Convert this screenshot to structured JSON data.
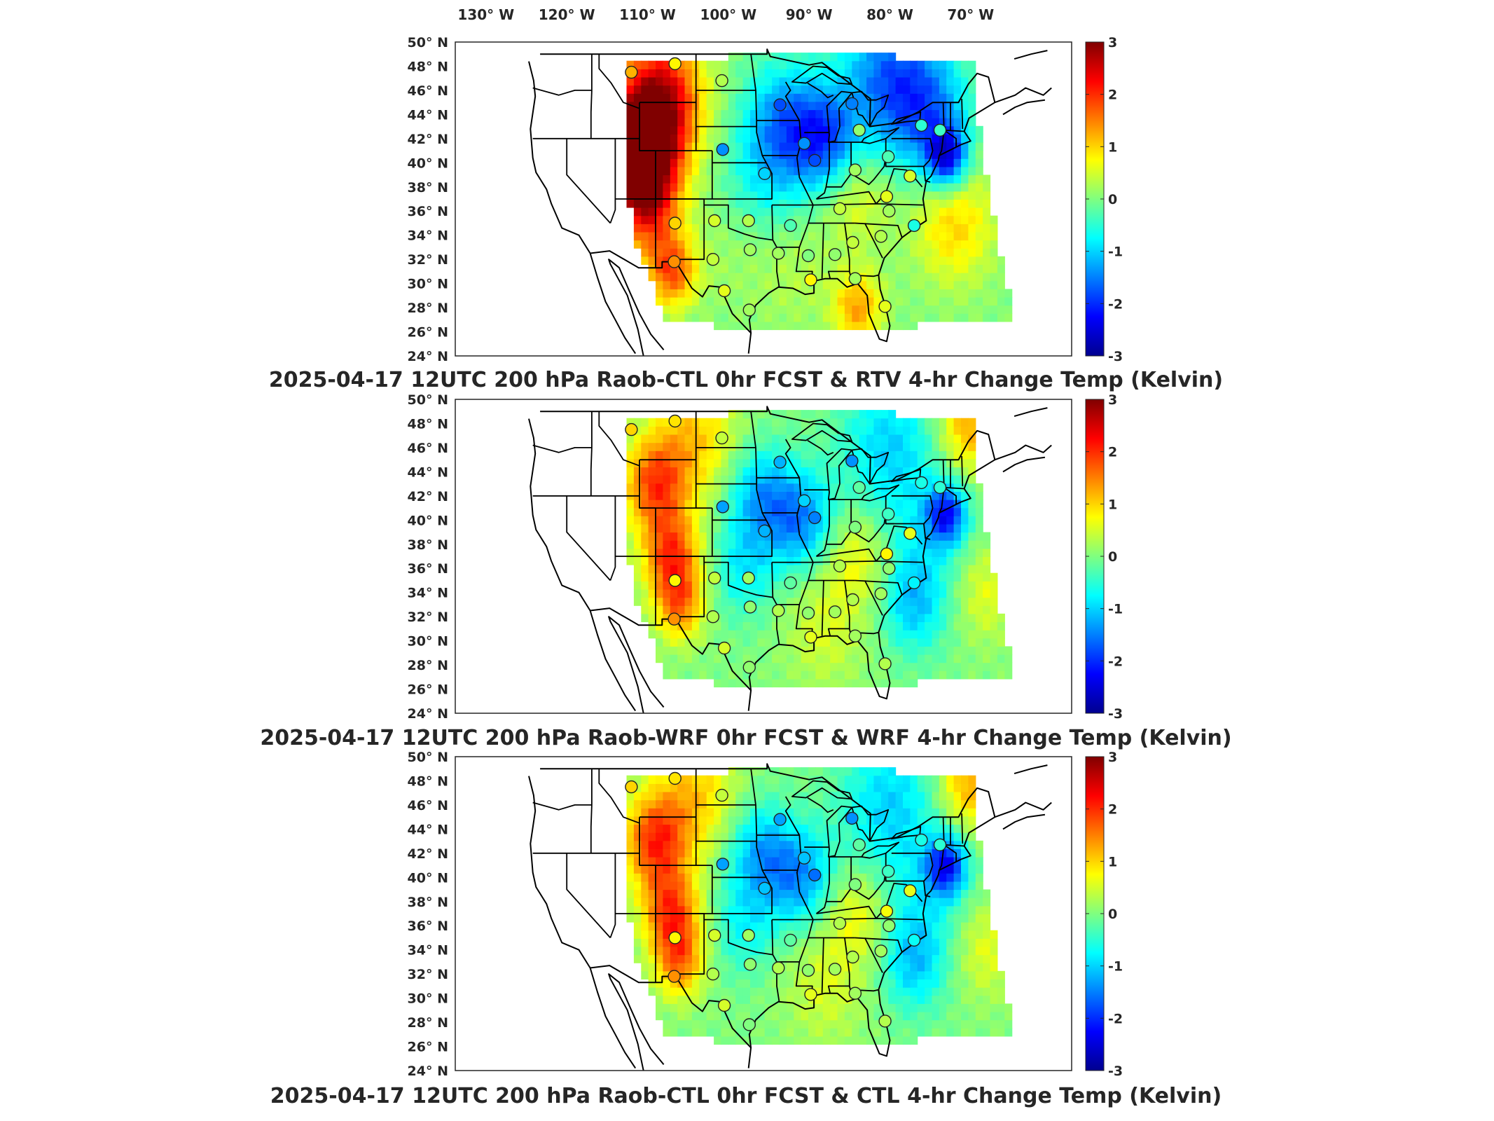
{
  "longitude_labels": [
    "130° W",
    "120° W",
    "110° W",
    "100° W",
    "90° W",
    "80° W",
    "70° W"
  ],
  "latitude_labels": [
    "50° N",
    "48° N",
    "46° N",
    "44° N",
    "42° N",
    "40° N",
    "38° N",
    "36° N",
    "34° N",
    "32° N",
    "30° N",
    "28° N",
    "26° N",
    "24° N"
  ],
  "colorbar": {
    "ticks": [
      "3",
      "2",
      "1",
      "0",
      "-1",
      "-2",
      "-3"
    ],
    "range": [
      -3,
      3
    ],
    "colormap": "jet",
    "colors": [
      "#00008f",
      "#0000ff",
      "#00ffff",
      "#ffff00",
      "#ff0000",
      "#800000"
    ]
  },
  "panels": [
    {
      "title": "2025-04-17 12UTC 200 hPa Raob-CTL 0hr FCST & RTV 4-hr Change Temp (Kelvin)",
      "field_summary": "west warm, central cool, east mixed"
    },
    {
      "title": "2025-04-17 12UTC 200 hPa Raob-WRF 0hr FCST & WRF 4-hr Change Temp (Kelvin)",
      "field_summary": "smoother field"
    },
    {
      "title": "2025-04-17 12UTC 200 hPa Raob-CTL 0hr FCST & CTL 4-hr Change Temp (Kelvin)",
      "field_summary": "similar to WRF"
    }
  ],
  "stations": [
    {
      "lon": -112.0,
      "lat": 47.5,
      "v": [
        1.2,
        1.0,
        1.0
      ]
    },
    {
      "lon": -106.6,
      "lat": 48.2,
      "v": [
        0.8,
        0.9,
        0.9
      ]
    },
    {
      "lon": -100.8,
      "lat": 46.8,
      "v": [
        0.3,
        0.4,
        0.4
      ]
    },
    {
      "lon": -93.6,
      "lat": 44.8,
      "v": [
        -1.8,
        -1.2,
        -1.3
      ]
    },
    {
      "lon": -84.7,
      "lat": 44.9,
      "v": [
        -1.5,
        -1.4,
        -1.4
      ]
    },
    {
      "lon": -100.7,
      "lat": 41.1,
      "v": [
        -1.4,
        -1.3,
        -1.3
      ]
    },
    {
      "lon": -95.5,
      "lat": 39.1,
      "v": [
        -1.0,
        -1.2,
        -1.1
      ]
    },
    {
      "lon": -89.3,
      "lat": 40.2,
      "v": [
        -1.8,
        -1.5,
        -1.6
      ]
    },
    {
      "lon": -90.6,
      "lat": 41.6,
      "v": [
        -1.4,
        -1.0,
        -1.1
      ]
    },
    {
      "lon": -83.8,
      "lat": 42.7,
      "v": [
        0.1,
        -0.2,
        -0.2
      ]
    },
    {
      "lon": -84.3,
      "lat": 39.4,
      "v": [
        0.2,
        0.0,
        0.0
      ]
    },
    {
      "lon": -80.2,
      "lat": 40.5,
      "v": [
        -0.3,
        -0.4,
        -0.4
      ]
    },
    {
      "lon": -76.1,
      "lat": 43.1,
      "v": [
        -0.5,
        -0.6,
        -0.6
      ]
    },
    {
      "lon": -73.8,
      "lat": 42.7,
      "v": [
        -0.4,
        -0.5,
        -0.5
      ]
    },
    {
      "lon": -77.5,
      "lat": 38.9,
      "v": [
        0.5,
        0.6,
        0.6
      ]
    },
    {
      "lon": -80.4,
      "lat": 37.2,
      "v": [
        0.6,
        0.8,
        0.7
      ]
    },
    {
      "lon": -80.1,
      "lat": 36.0,
      "v": [
        0.2,
        0.1,
        0.1
      ]
    },
    {
      "lon": -77.0,
      "lat": 34.8,
      "v": [
        -0.6,
        -0.8,
        -0.7
      ]
    },
    {
      "lon": -81.1,
      "lat": 33.9,
      "v": [
        0.3,
        0.2,
        0.2
      ]
    },
    {
      "lon": -84.6,
      "lat": 33.4,
      "v": [
        0.4,
        0.3,
        0.3
      ]
    },
    {
      "lon": -86.8,
      "lat": 32.4,
      "v": [
        0.1,
        0.2,
        0.2
      ]
    },
    {
      "lon": -90.1,
      "lat": 32.3,
      "v": [
        0.0,
        0.1,
        0.1
      ]
    },
    {
      "lon": -93.8,
      "lat": 32.5,
      "v": [
        0.2,
        0.3,
        0.3
      ]
    },
    {
      "lon": -92.3,
      "lat": 34.8,
      "v": [
        -0.3,
        -0.2,
        -0.2
      ]
    },
    {
      "lon": -89.8,
      "lat": 30.3,
      "v": [
        0.8,
        0.6,
        0.6
      ]
    },
    {
      "lon": -86.2,
      "lat": 36.2,
      "v": [
        0.4,
        0.3,
        0.3
      ]
    },
    {
      "lon": -97.5,
      "lat": 35.2,
      "v": [
        0.3,
        0.2,
        0.2
      ]
    },
    {
      "lon": -101.7,
      "lat": 35.2,
      "v": [
        0.5,
        0.4,
        0.5
      ]
    },
    {
      "lon": -97.3,
      "lat": 32.8,
      "v": [
        0.2,
        0.1,
        0.1
      ]
    },
    {
      "lon": -101.9,
      "lat": 32.0,
      "v": [
        0.4,
        0.3,
        0.3
      ]
    },
    {
      "lon": -106.7,
      "lat": 31.8,
      "v": [
        1.4,
        1.4,
        1.4
      ]
    },
    {
      "lon": -100.5,
      "lat": 29.4,
      "v": [
        0.6,
        0.5,
        0.5
      ]
    },
    {
      "lon": -106.6,
      "lat": 35.0,
      "v": [
        1.0,
        0.8,
        0.8
      ]
    },
    {
      "lon": -97.4,
      "lat": 27.8,
      "v": [
        0.2,
        0.1,
        0.0
      ]
    },
    {
      "lon": -84.3,
      "lat": 30.4,
      "v": [
        0.2,
        0.2,
        0.2
      ]
    },
    {
      "lon": -80.6,
      "lat": 28.1,
      "v": [
        0.6,
        0.3,
        0.3
      ]
    }
  ]
}
